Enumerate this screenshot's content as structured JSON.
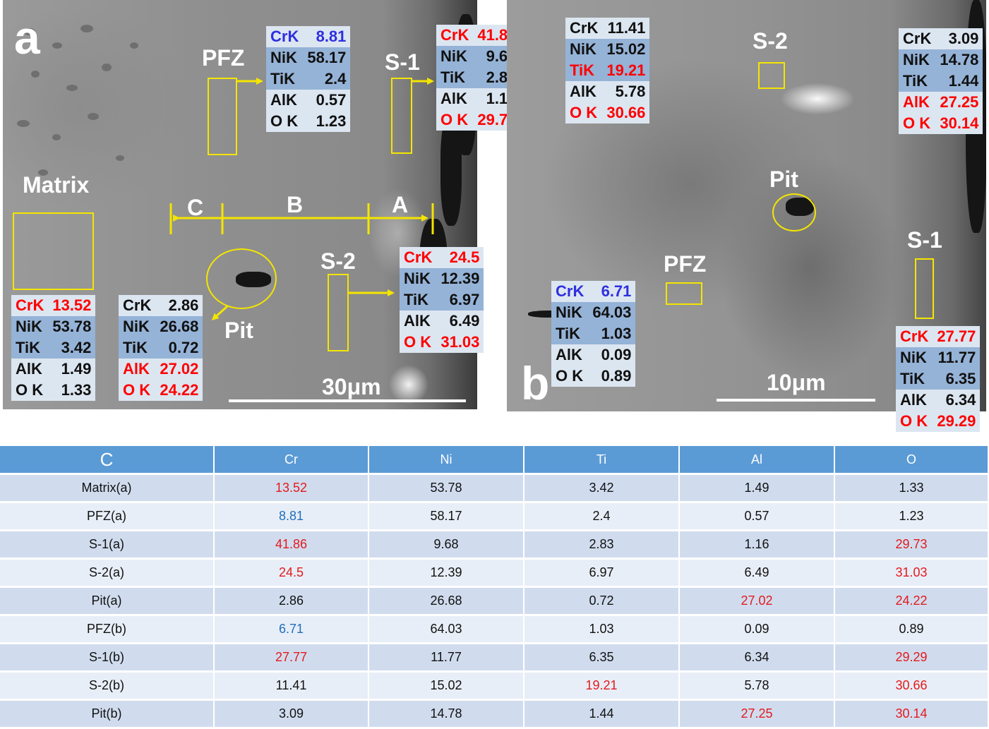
{
  "panel_a": {
    "letter": "a",
    "labels": {
      "pfz": "PFZ",
      "s1": "S-1",
      "matrix": "Matrix",
      "s2": "S-2",
      "pit": "Pit",
      "c": "C",
      "b": "B",
      "a": "A"
    },
    "scale": "30μm",
    "boxes": {
      "pfz": {
        "crk": "8.81",
        "nik": "58.17",
        "tik": "2.4",
        "alk": "0.57",
        "ok": "1.23"
      },
      "s1": {
        "crk": "41.86",
        "nik": "9.68",
        "tik": "2.83",
        "alk": "1.16",
        "ok": "29.73"
      },
      "matrix": {
        "crk": "13.52",
        "nik": "53.78",
        "tik": "3.42",
        "alk": "1.49",
        "ok": "1.33"
      },
      "pit": {
        "crk": "2.86",
        "nik": "26.68",
        "tik": "0.72",
        "alk": "27.02",
        "ok": "24.22"
      },
      "s2": {
        "crk": "24.5",
        "nik": "12.39",
        "tik": "6.97",
        "alk": "6.49",
        "ok": "31.03"
      }
    }
  },
  "panel_b": {
    "letter": "b",
    "labels": {
      "s2": "S-2",
      "pit": "Pit",
      "s1": "S-1",
      "pfz": "PFZ"
    },
    "scale": "10μm",
    "boxes": {
      "s2": {
        "crk": "11.41",
        "nik": "15.02",
        "tik": "19.21",
        "alk": "5.78",
        "ok": "30.66"
      },
      "pit": {
        "crk": "3.09",
        "nik": "14.78",
        "tik": "1.44",
        "alk": "27.25",
        "ok": "30.14"
      },
      "pfz": {
        "crk": "6.71",
        "nik": "64.03",
        "tik": "1.03",
        "alk": "0.09",
        "ok": "0.89"
      },
      "s1": {
        "crk": "27.77",
        "nik": "11.77",
        "tik": "6.35",
        "alk": "6.34",
        "ok": "29.29"
      }
    }
  },
  "element_labels": {
    "crk": "CrK",
    "nik": "NiK",
    "tik": "TiK",
    "alk": "AlK",
    "ok": "O K"
  },
  "colors": {
    "highlight_red": "#ff0000",
    "highlight_blue": "#2f2fe0",
    "table_header": "#5b9bd5",
    "marker_yellow": "#f4e500"
  },
  "table": {
    "headers": [
      "C",
      "Cr",
      "Ni",
      "Ti",
      "Al",
      "O"
    ],
    "rows": [
      [
        "Matrix(a)",
        "13.52",
        "53.78",
        "3.42",
        "1.49",
        "1.33"
      ],
      [
        "PFZ(a)",
        "8.81",
        "58.17",
        "2.4",
        "0.57",
        "1.23"
      ],
      [
        "S-1(a)",
        "41.86",
        "9.68",
        "2.83",
        "1.16",
        "29.73"
      ],
      [
        "S-2(a)",
        "24.5",
        "12.39",
        "6.97",
        "6.49",
        "31.03"
      ],
      [
        "Pit(a)",
        "2.86",
        "26.68",
        "0.72",
        "27.02",
        "24.22"
      ],
      [
        "PFZ(b)",
        "6.71",
        "64.03",
        "1.03",
        "0.09",
        "0.89"
      ],
      [
        "S-1(b)",
        "27.77",
        "11.77",
        "6.35",
        "6.34",
        "29.29"
      ],
      [
        "S-2(b)",
        "11.41",
        "15.02",
        "19.21",
        "5.78",
        "30.66"
      ],
      [
        "Pit(b)",
        "3.09",
        "14.78",
        "1.44",
        "27.25",
        "30.14"
      ]
    ]
  }
}
